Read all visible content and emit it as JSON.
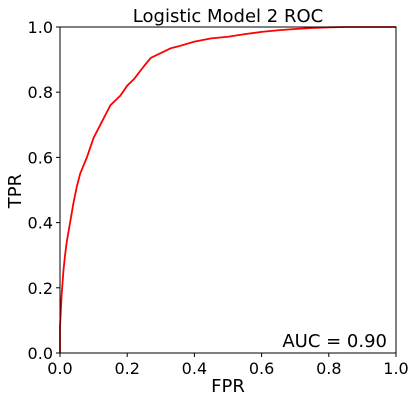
{
  "chart_data": {
    "type": "line",
    "title": "Logistic Model 2 ROC",
    "xlabel": "FPR",
    "ylabel": "TPR",
    "xlim": [
      0.0,
      1.0
    ],
    "ylim": [
      0.0,
      1.0
    ],
    "xticks": [
      "0.0",
      "0.2",
      "0.4",
      "0.6",
      "0.8",
      "1.0"
    ],
    "yticks": [
      "0.0",
      "0.2",
      "0.4",
      "0.6",
      "0.8",
      "1.0"
    ],
    "grid": false,
    "annotation": "AUC = 0.90",
    "series": [
      {
        "color": "#ff0000",
        "x": [
          0.0,
          0.0,
          0.005,
          0.01,
          0.015,
          0.02,
          0.03,
          0.04,
          0.05,
          0.06,
          0.08,
          0.1,
          0.12,
          0.15,
          0.18,
          0.2,
          0.22,
          0.25,
          0.27,
          0.3,
          0.33,
          0.35,
          0.4,
          0.45,
          0.5,
          0.55,
          0.6,
          0.65,
          0.7,
          0.75,
          0.8,
          0.85,
          1.0
        ],
        "y": [
          0.0,
          0.08,
          0.18,
          0.25,
          0.3,
          0.34,
          0.4,
          0.46,
          0.51,
          0.55,
          0.6,
          0.66,
          0.7,
          0.76,
          0.79,
          0.82,
          0.84,
          0.88,
          0.905,
          0.92,
          0.935,
          0.94,
          0.955,
          0.965,
          0.97,
          0.978,
          0.985,
          0.99,
          0.994,
          0.997,
          0.999,
          1.0,
          1.0
        ]
      }
    ]
  }
}
